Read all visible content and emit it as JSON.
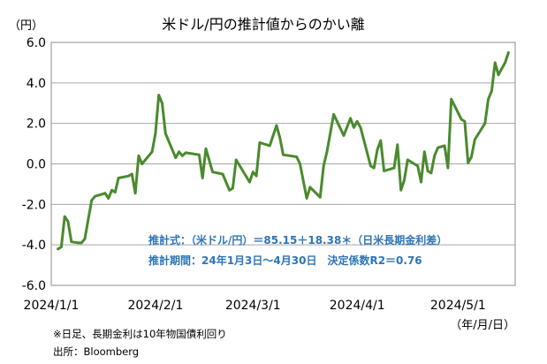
{
  "chart_data": {
    "type": "line",
    "title": "米ドル/円の推計値からのかい離",
    "ylabel": "（円）",
    "xlabel": "（年/月/日）",
    "ylim": [
      -6.0,
      6.0
    ],
    "grid": true,
    "yticks": [
      6.0,
      4.0,
      2.0,
      0.0,
      -2.0,
      -4.0,
      -6.0
    ],
    "ytick_labels": [
      "6.0",
      "4.0",
      "2.0",
      "0.0",
      "-2.0",
      "-4.0",
      "-6.0"
    ],
    "xticks": [
      {
        "date": "2024-01-01",
        "label": "2024/1/1"
      },
      {
        "date": "2024-02-01",
        "label": "2024/2/1"
      },
      {
        "date": "2024-03-01",
        "label": "2024/3/1"
      },
      {
        "date": "2024-04-01",
        "label": "2024/4/1"
      },
      {
        "date": "2024-05-01",
        "label": "2024/5/1"
      }
    ],
    "xlim": [
      "2024-01-01",
      "2024-05-18"
    ],
    "series": [
      {
        "color": "#4a8a2e",
        "points": [
          [
            "2024-01-03",
            -4.2
          ],
          [
            "2024-01-04",
            -4.1
          ],
          [
            "2024-01-05",
            -2.6
          ],
          [
            "2024-01-06",
            -2.85
          ],
          [
            "2024-01-07",
            -3.85
          ],
          [
            "2024-01-09",
            -3.9
          ],
          [
            "2024-01-10",
            -3.9
          ],
          [
            "2024-01-11",
            -3.7
          ],
          [
            "2024-01-13",
            -1.8
          ],
          [
            "2024-01-14",
            -1.6
          ],
          [
            "2024-01-16",
            -1.5
          ],
          [
            "2024-01-17",
            -1.45
          ],
          [
            "2024-01-18",
            -1.7
          ],
          [
            "2024-01-19",
            -1.3
          ],
          [
            "2024-01-20",
            -1.4
          ],
          [
            "2024-01-21",
            -0.7
          ],
          [
            "2024-01-24",
            -0.6
          ],
          [
            "2024-01-25",
            -0.5
          ],
          [
            "2024-01-26",
            -1.45
          ],
          [
            "2024-01-27",
            0.4
          ],
          [
            "2024-01-28",
            0.0
          ],
          [
            "2024-01-31",
            0.6
          ],
          [
            "2024-02-01",
            1.5
          ],
          [
            "2024-02-02",
            3.4
          ],
          [
            "2024-02-03",
            3.0
          ],
          [
            "2024-02-04",
            1.5
          ],
          [
            "2024-02-07",
            0.3
          ],
          [
            "2024-02-08",
            0.6
          ],
          [
            "2024-02-09",
            0.4
          ],
          [
            "2024-02-10",
            0.55
          ],
          [
            "2024-02-14",
            0.45
          ],
          [
            "2024-02-15",
            -0.7
          ],
          [
            "2024-02-16",
            0.75
          ],
          [
            "2024-02-18",
            -0.4
          ],
          [
            "2024-02-21",
            -0.5
          ],
          [
            "2024-02-23",
            -1.3
          ],
          [
            "2024-02-24",
            -1.2
          ],
          [
            "2024-02-25",
            0.2
          ],
          [
            "2024-02-29",
            -0.9
          ],
          [
            "2024-03-01",
            -0.4
          ],
          [
            "2024-03-02",
            -0.6
          ],
          [
            "2024-03-03",
            1.05
          ],
          [
            "2024-03-06",
            0.9
          ],
          [
            "2024-03-08",
            1.9
          ],
          [
            "2024-03-09",
            1.3
          ],
          [
            "2024-03-10",
            0.45
          ],
          [
            "2024-03-14",
            0.35
          ],
          [
            "2024-03-15",
            0.0
          ],
          [
            "2024-03-17",
            -1.7
          ],
          [
            "2024-03-18",
            -1.15
          ],
          [
            "2024-03-21",
            -1.65
          ],
          [
            "2024-03-22",
            -0.1
          ],
          [
            "2024-03-23",
            0.6
          ],
          [
            "2024-03-25",
            2.45
          ],
          [
            "2024-03-28",
            1.4
          ],
          [
            "2024-03-30",
            2.25
          ],
          [
            "2024-03-31",
            1.8
          ],
          [
            "2024-04-01",
            2.1
          ],
          [
            "2024-04-02",
            1.8
          ],
          [
            "2024-04-05",
            -0.1
          ],
          [
            "2024-04-06",
            -0.2
          ],
          [
            "2024-04-07",
            0.7
          ],
          [
            "2024-04-08",
            1.15
          ],
          [
            "2024-04-09",
            -0.35
          ],
          [
            "2024-04-12",
            -0.2
          ],
          [
            "2024-04-13",
            0.95
          ],
          [
            "2024-04-14",
            -1.3
          ],
          [
            "2024-04-15",
            -0.8
          ],
          [
            "2024-04-16",
            0.2
          ],
          [
            "2024-04-18",
            0.0
          ],
          [
            "2024-04-19",
            -0.1
          ],
          [
            "2024-04-20",
            -0.9
          ],
          [
            "2024-04-21",
            0.6
          ],
          [
            "2024-04-22",
            -0.35
          ],
          [
            "2024-04-23",
            -0.45
          ],
          [
            "2024-04-24",
            0.4
          ],
          [
            "2024-04-25",
            0.8
          ],
          [
            "2024-04-27",
            0.9
          ],
          [
            "2024-04-28",
            -0.2
          ],
          [
            "2024-04-29",
            3.2
          ],
          [
            "2024-05-02",
            2.2
          ],
          [
            "2024-05-03",
            2.1
          ],
          [
            "2024-05-04",
            0.05
          ],
          [
            "2024-05-05",
            0.35
          ],
          [
            "2024-05-06",
            1.2
          ],
          [
            "2024-05-09",
            2.0
          ],
          [
            "2024-05-10",
            3.2
          ],
          [
            "2024-05-11",
            3.6
          ],
          [
            "2024-05-12",
            5.0
          ],
          [
            "2024-05-13",
            4.4
          ],
          [
            "2024-05-15",
            5.0
          ],
          [
            "2024-05-16",
            5.5
          ]
        ]
      }
    ],
    "annotations": [
      "推計式：（米ドル/円）＝85.15＋18.38＊（日米長期金利差）",
      "推計期間：24年1月3日～4月30日　決定係数R2＝0.76"
    ]
  },
  "footnotes": [
    "※日足、長期金利は10年物国債利回り",
    "出所：Bloomberg"
  ]
}
